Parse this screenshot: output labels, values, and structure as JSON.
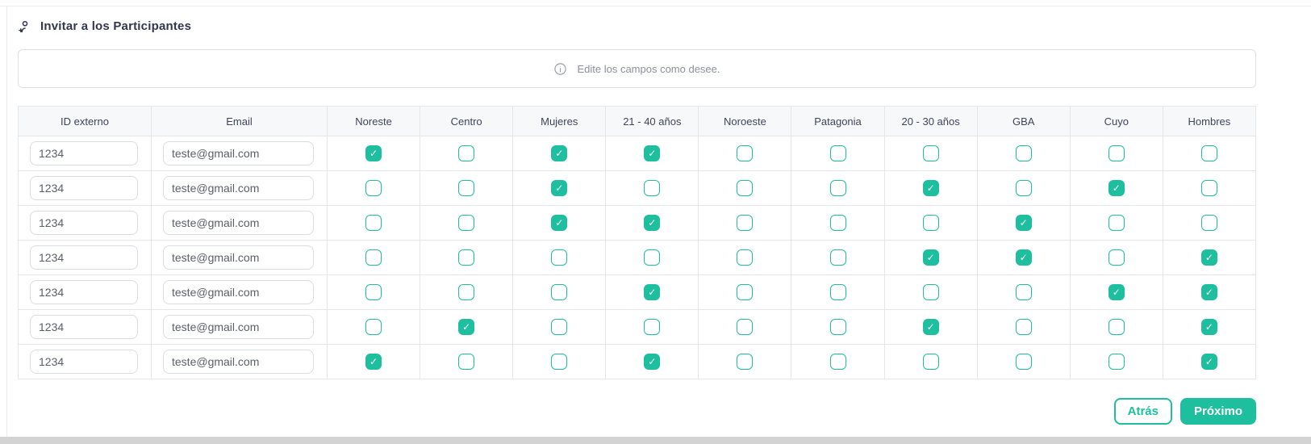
{
  "header": {
    "title": "Invitar a los Participantes",
    "title_icon": "person-add-icon"
  },
  "banner": {
    "icon": "info-icon",
    "text": "Edite los campos como desee."
  },
  "table": {
    "columns": [
      "ID externo",
      "Email",
      "Noreste",
      "Centro",
      "Mujeres",
      "21 - 40 años",
      "Noroeste",
      "Patagonia",
      "20 - 30 años",
      "GBA",
      "Cuyo",
      "Hombres"
    ],
    "rows": [
      {
        "id": "1234",
        "email": "teste@gmail.com",
        "checks": [
          true,
          false,
          true,
          true,
          false,
          false,
          false,
          false,
          false,
          false
        ]
      },
      {
        "id": "1234",
        "email": "teste@gmail.com",
        "checks": [
          false,
          false,
          true,
          false,
          false,
          false,
          true,
          false,
          true,
          false
        ]
      },
      {
        "id": "1234",
        "email": "teste@gmail.com",
        "checks": [
          false,
          false,
          true,
          true,
          false,
          false,
          false,
          true,
          false,
          false
        ]
      },
      {
        "id": "1234",
        "email": "teste@gmail.com",
        "checks": [
          false,
          false,
          false,
          false,
          false,
          false,
          true,
          true,
          false,
          true
        ]
      },
      {
        "id": "1234",
        "email": "teste@gmail.com",
        "checks": [
          false,
          false,
          false,
          true,
          false,
          false,
          false,
          false,
          true,
          true
        ]
      },
      {
        "id": "1234",
        "email": "teste@gmail.com",
        "checks": [
          false,
          true,
          false,
          false,
          false,
          false,
          true,
          false,
          false,
          true
        ]
      },
      {
        "id": "1234",
        "email": "teste@gmail.com",
        "checks": [
          true,
          false,
          false,
          true,
          false,
          false,
          false,
          false,
          false,
          true
        ]
      }
    ]
  },
  "buttons": {
    "back": "Atrás",
    "next": "Próximo"
  },
  "colors": {
    "accent": "#1dbf9e",
    "checkbox_checked": "#1dbf9e",
    "header_row_bg": "#f7f8fa",
    "table_border": "#e4e6ea"
  }
}
